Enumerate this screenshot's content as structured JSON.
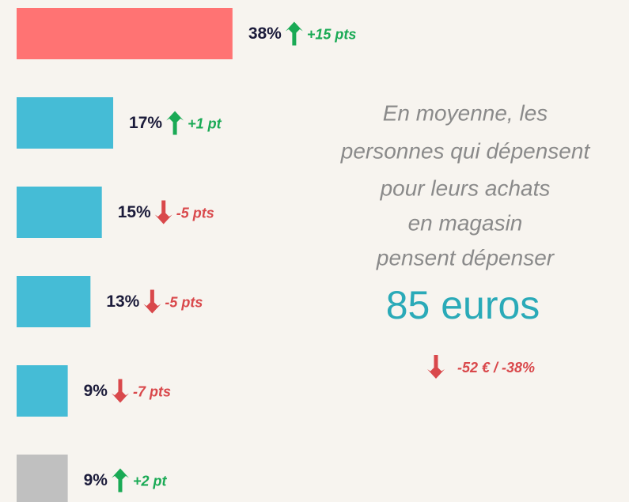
{
  "chart_data": {
    "type": "bar",
    "orientation": "horizontal",
    "categories": [
      null,
      null,
      null,
      null,
      null,
      null
    ],
    "values": [
      38,
      17,
      15,
      13,
      9,
      9
    ],
    "value_labels": [
      "38%",
      "17%",
      "15%",
      "13%",
      "9%",
      "9%"
    ],
    "colors": [
      "#ff7373",
      "#45bcd6",
      "#45bcd6",
      "#45bcd6",
      "#45bcd6",
      "#c0c0c0"
    ],
    "change_values": [
      15,
      1,
      -5,
      -5,
      -7,
      2
    ],
    "change_labels": [
      "+15 pts",
      "+1 pt",
      "-5 pts",
      "-5 pts",
      "-7 pts",
      "+2 pt"
    ],
    "summary": {
      "lines": [
        "En moyenne, les",
        "personnes qui dépensent",
        "pour leurs achats",
        "en magasin",
        "pensent dépenser"
      ],
      "amount": "85 euros",
      "change_value": -52,
      "change_label": "-52 € / -38%"
    }
  }
}
